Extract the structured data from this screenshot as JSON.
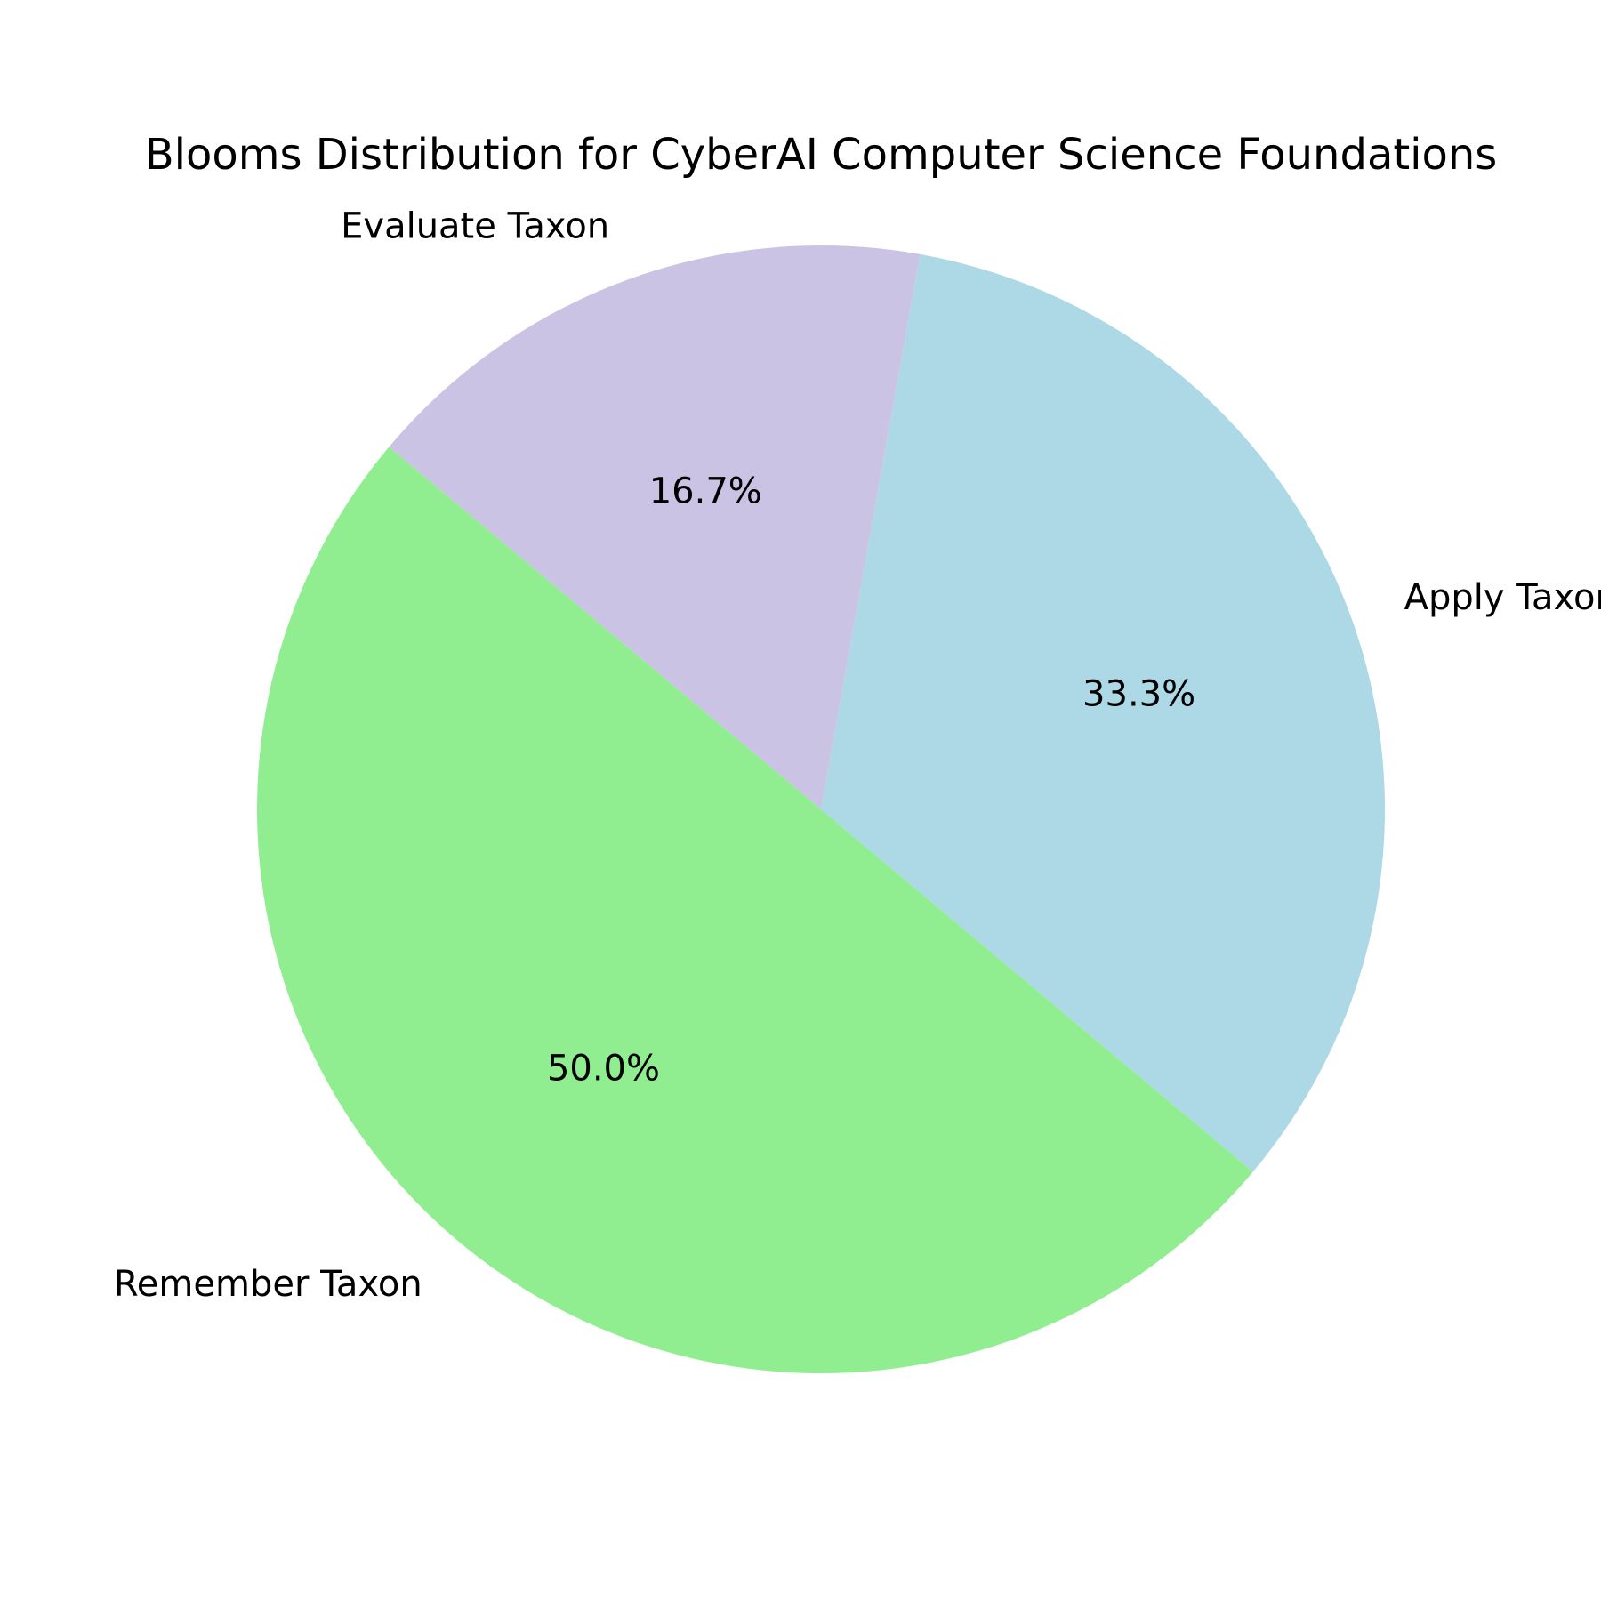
{
  "chart_data": {
    "type": "pie",
    "title": "Blooms Distribution for CyberAI Computer Science Foundations",
    "categories": [
      "Apply Taxon",
      "Evaluate Taxon",
      "Remember Taxon"
    ],
    "values": [
      33.3,
      16.7,
      50.0
    ],
    "percent_labels": [
      "33.3%",
      "16.7%",
      "50.0%"
    ],
    "colors": [
      "#add8e6",
      "#cbc3e3",
      "#90ee90"
    ],
    "start_angle_deg": -40,
    "direction": "counterclockwise",
    "legend": "none"
  }
}
